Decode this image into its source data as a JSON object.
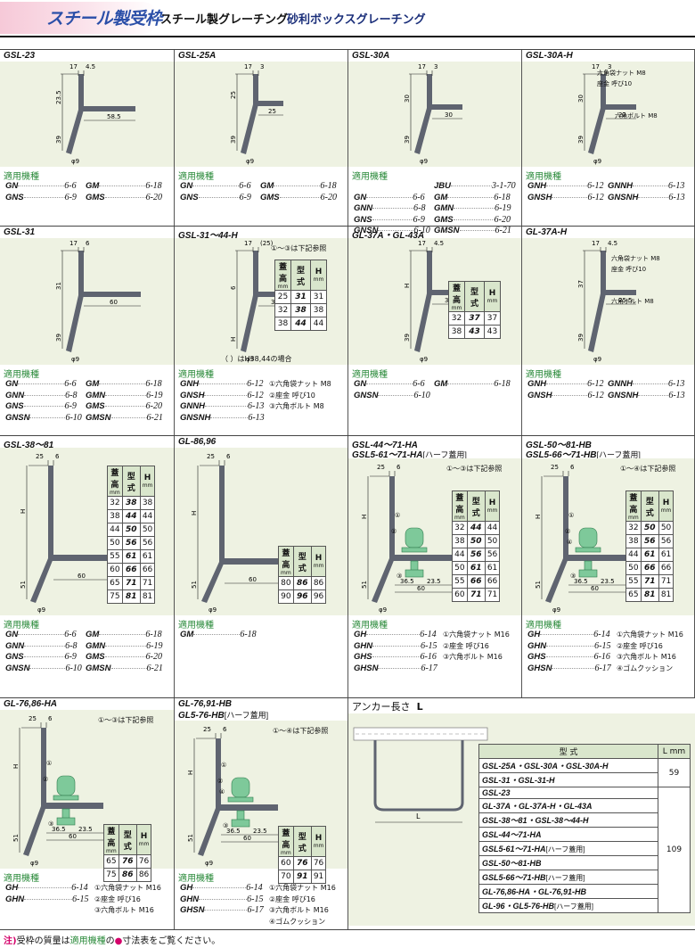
{
  "header": {
    "brand": "スチール製受枠",
    "title1": "スチール製グレーチング",
    "title2": "砂利ボックスグレーチング"
  },
  "labels": {
    "equip": "適用機種",
    "keys_note_3": "①〜③は下記参照",
    "keys_note_4": "①〜④は下記参照",
    "h38_note": "（ ）はH38,44の場合",
    "half": "[ハーフ蓋用]",
    "table_h1": "蓋高",
    "table_h2": "型式",
    "table_h3": "H",
    "mm": "mm"
  },
  "parts": {
    "p1_m8": "①六角袋ナット M8",
    "p2_10": "②座金 呼び10",
    "p3_m8": "③六角ボルト M8",
    "p1_m16": "①六角袋ナット M16",
    "p2_16": "②座金 呼び16",
    "p3_m16": "③六角ボルト M16",
    "p4": "④ゴムクッション",
    "nut_m8": "六角袋ナット M8",
    "washer_10": "座金 呼び10",
    "bolt_m8": "六角ボルト M8"
  },
  "cells": {
    "gsl23": {
      "title": "GSL-23",
      "dims": [
        "17",
        "4.5",
        "23.5",
        "39",
        "58.5",
        "φ9"
      ],
      "equip": [
        [
          "GN",
          "6-6",
          "GM",
          "6-18"
        ],
        [
          "GNS",
          "6-9",
          "GMS",
          "6-20"
        ]
      ]
    },
    "gsl25a": {
      "title": "GSL-25A",
      "dims": [
        "17",
        "3",
        "25",
        "39",
        "25",
        "φ9"
      ],
      "equip": [
        [
          "GN",
          "6-6",
          "GM",
          "6-18"
        ],
        [
          "GNS",
          "6-9",
          "GMS",
          "6-20"
        ]
      ]
    },
    "gsl30a": {
      "title": "GSL-30A",
      "dims": [
        "17",
        "3",
        "30",
        "39",
        "30",
        "φ9"
      ],
      "equip": [
        [
          "",
          "",
          "JBU",
          "3-1-70"
        ],
        [
          "GN",
          "6-6",
          "GM",
          "6-18"
        ],
        [
          "GNN",
          "6-8",
          "GMN",
          "6-19"
        ],
        [
          "GNS",
          "6-9",
          "GMS",
          "6-20"
        ],
        [
          "GNSN",
          "6-10",
          "GMSN",
          "6-21"
        ]
      ]
    },
    "gsl30ah": {
      "title": "GSL-30A-H",
      "dims": [
        "17",
        "3",
        "30",
        "39",
        "22",
        "8",
        "30",
        "φ9"
      ],
      "equip": [
        [
          "GNH",
          "6-12",
          "GNNH",
          "6-13"
        ],
        [
          "GNSH",
          "6-12",
          "GNSNH",
          "6-13"
        ]
      ]
    },
    "gsl31": {
      "title": "GSL-31",
      "dims": [
        "17",
        "6",
        "31",
        "39",
        "60",
        "φ9"
      ],
      "equip": [
        [
          "GN",
          "6-6",
          "GM",
          "6-18"
        ],
        [
          "GNN",
          "6-8",
          "GMN",
          "6-19"
        ],
        [
          "GNS",
          "6-9",
          "GMS",
          "6-20"
        ],
        [
          "GNSN",
          "6-10",
          "GMSN",
          "6-21"
        ]
      ]
    },
    "gsl3144h": {
      "title": "GSL-31〜44-H",
      "dims": [
        "17",
        "(25)",
        "6",
        "H",
        "39(51)",
        "27",
        "33",
        "60",
        "φ9"
      ],
      "table": [
        [
          "25",
          "31",
          "31"
        ],
        [
          "32",
          "38",
          "38"
        ],
        [
          "38",
          "44",
          "44"
        ]
      ],
      "equip": [
        [
          "GNH",
          "6-12"
        ],
        [
          "GNSH",
          "6-12"
        ],
        [
          "GNNH",
          "6-13"
        ],
        [
          "GNSNH",
          "6-13"
        ]
      ]
    },
    "gl37a43a": {
      "title": "GL-37A・GL-43A",
      "dims": [
        "17",
        "4.5",
        "H",
        "39",
        "33.5",
        "φ9"
      ],
      "table": [
        [
          "32",
          "37",
          "37"
        ],
        [
          "38",
          "43",
          "43"
        ]
      ],
      "equip": [
        [
          "GN",
          "6-6",
          "GM",
          "6-18"
        ],
        [
          "GNSN",
          "6-10",
          "",
          ""
        ]
      ]
    },
    "gl37ah": {
      "title": "GL-37A-H",
      "dims": [
        "17",
        "4.5",
        "37",
        "39",
        "25.5",
        "8",
        "33.5",
        "φ9"
      ],
      "equip": [
        [
          "GNH",
          "6-12",
          "GNNH",
          "6-13"
        ],
        [
          "GNSH",
          "6-12",
          "GNSNH",
          "6-13"
        ]
      ]
    },
    "gsl3881": {
      "title": "GSL-38〜81",
      "dims": [
        "25",
        "6",
        "H",
        "51",
        "60",
        "φ9"
      ],
      "table": [
        [
          "32",
          "38",
          "38"
        ],
        [
          "38",
          "44",
          "44"
        ],
        [
          "44",
          "50",
          "50"
        ],
        [
          "50",
          "56",
          "56"
        ],
        [
          "55",
          "61",
          "61"
        ],
        [
          "60",
          "66",
          "66"
        ],
        [
          "65",
          "71",
          "71"
        ],
        [
          "75",
          "81",
          "81"
        ]
      ],
      "equip": [
        [
          "GN",
          "6-6",
          "GM",
          "6-18"
        ],
        [
          "GNN",
          "6-8",
          "GMN",
          "6-19"
        ],
        [
          "GNS",
          "6-9",
          "GMS",
          "6-20"
        ],
        [
          "GNSN",
          "6-10",
          "GMSN",
          "6-21"
        ]
      ]
    },
    "gl8696": {
      "title": "GL-86,96",
      "dims": [
        "25",
        "6",
        "H",
        "51",
        "60",
        "φ9"
      ],
      "table": [
        [
          "80",
          "86",
          "86"
        ],
        [
          "90",
          "96",
          "96"
        ]
      ],
      "equip": [
        [
          "GM",
          "6-18",
          "",
          ""
        ]
      ]
    },
    "gsl4471ha": {
      "title": "GSL-44〜71-HA",
      "title2": "GSL5-61〜71-HA",
      "dims": [
        "25",
        "6",
        "H",
        "51",
        "36.5",
        "23.5",
        "60",
        "φ9"
      ],
      "table": [
        [
          "32",
          "44",
          "44"
        ],
        [
          "38",
          "50",
          "50"
        ],
        [
          "44",
          "56",
          "56"
        ],
        [
          "50",
          "61",
          "61"
        ],
        [
          "55",
          "66",
          "66"
        ],
        [
          "60",
          "71",
          "71"
        ]
      ],
      "equip": [
        [
          "GH",
          "6-14"
        ],
        [
          "GHN",
          "6-15"
        ],
        [
          "GHS",
          "6-16"
        ],
        [
          "GHSN",
          "6-17"
        ]
      ]
    },
    "gsl5081hb": {
      "title": "GSL-50〜81-HB",
      "title2": "GSL5-66〜71-HB",
      "dims": [
        "25",
        "6",
        "H",
        "51",
        "36.5",
        "23.5",
        "60",
        "φ9"
      ],
      "table": [
        [
          "32",
          "50",
          "50"
        ],
        [
          "38",
          "56",
          "56"
        ],
        [
          "44",
          "61",
          "61"
        ],
        [
          "50",
          "66",
          "66"
        ],
        [
          "55",
          "71",
          "71"
        ],
        [
          "65",
          "81",
          "81"
        ]
      ],
      "equip": [
        [
          "GH",
          "6-14"
        ],
        [
          "GHN",
          "6-15"
        ],
        [
          "GHS",
          "6-16"
        ],
        [
          "GHSN",
          "6-17"
        ]
      ]
    },
    "gl7686ha": {
      "title": "GL-76,86-HA",
      "dims": [
        "25",
        "6",
        "H",
        "51",
        "36.5",
        "23.5",
        "60",
        "φ9"
      ],
      "table": [
        [
          "65",
          "76",
          "76"
        ],
        [
          "75",
          "86",
          "86"
        ]
      ],
      "equip": [
        [
          "GH",
          "6-14"
        ],
        [
          "GHN",
          "6-15"
        ]
      ]
    },
    "gl7691hb": {
      "title": "GL-76,91-HB",
      "title2": "GL5-76-HB",
      "dims": [
        "25",
        "6",
        "H",
        "51",
        "36.5",
        "23.5",
        "60",
        "φ9"
      ],
      "table": [
        [
          "60",
          "76",
          "76"
        ],
        [
          "70",
          "91",
          "91"
        ]
      ],
      "equip": [
        [
          "GH",
          "6-14"
        ],
        [
          "GHN",
          "6-15"
        ],
        [
          "GHSN",
          "6-17"
        ]
      ]
    }
  },
  "anchor": {
    "title": "アンカー長さ",
    "L": "L",
    "col1": "型 式",
    "col2": "L mm",
    "groups": [
      {
        "rows": [
          "GSL-25A・GSL-30A・GSL-30A-H",
          "GSL-31・GSL-31-H"
        ],
        "value": "59"
      },
      {
        "rows": [
          "GSL-23",
          "GL-37A・GL-37A-H・GL-43A",
          "GSL-38〜81・GSL-38〜44-H",
          "GSL-44〜71-HA",
          "GSL5-61〜71-HA[ハーフ蓋用]",
          "GSL-50〜81-HB",
          "GSL5-66〜71-HB[ハーフ蓋用]",
          "GL-76,86-HA・GL-76,91-HB",
          "GL-96・GL5-76-HB[ハーフ蓋用]"
        ],
        "value": "109"
      }
    ]
  },
  "footer": {
    "note": "注)",
    "t1": "受枠の質量は",
    "equip": "適用機種",
    "t2": "の",
    "bullet": "●",
    "t3": "寸法表",
    "t4": "をご覧ください。"
  },
  "colors": {
    "frame": "#5f6470",
    "bolt": "#7ec99a",
    "figbg": "#eef2e2",
    "accent": "#2a8a3a"
  }
}
